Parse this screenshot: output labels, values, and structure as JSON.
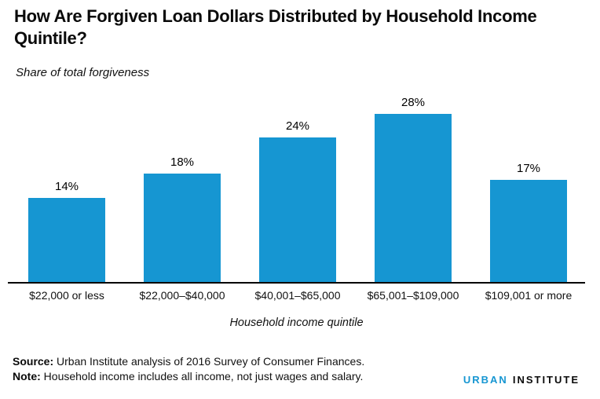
{
  "title": "How Are Forgiven Loan Dollars Distributed by Household Income Quintile?",
  "subtitle": "Share of total forgiveness",
  "chart_data": {
    "type": "bar",
    "categories": [
      "$22,000 or less",
      "$22,000–$40,000",
      "$40,001–$65,000",
      "$65,001–$109,000",
      "$109,001 or more"
    ],
    "values": [
      14,
      18,
      24,
      28,
      17
    ],
    "value_labels": [
      "14%",
      "18%",
      "24%",
      "28%",
      "17%"
    ],
    "title": "How Are Forgiven Loan Dollars Distributed by Household Income Quintile?",
    "xlabel": "Household income quintile",
    "ylabel": "Share of total forgiveness",
    "ylim": [
      0,
      30
    ],
    "grid": false,
    "legend": "none",
    "bar_color": "#1696d2",
    "axis_color": "#000000"
  },
  "footer": {
    "source_label": "Source:",
    "source_text": "Urban Institute analysis of 2016 Survey of Consumer Finances.",
    "note_label": "Note:",
    "note_text": "Household income includes all income, not just wages and salary."
  },
  "logo": {
    "part1": "URBAN",
    "part2": "INSTITUTE"
  },
  "colors": {
    "accent_blue": "#1696d2",
    "text": "#0a0a0a"
  }
}
